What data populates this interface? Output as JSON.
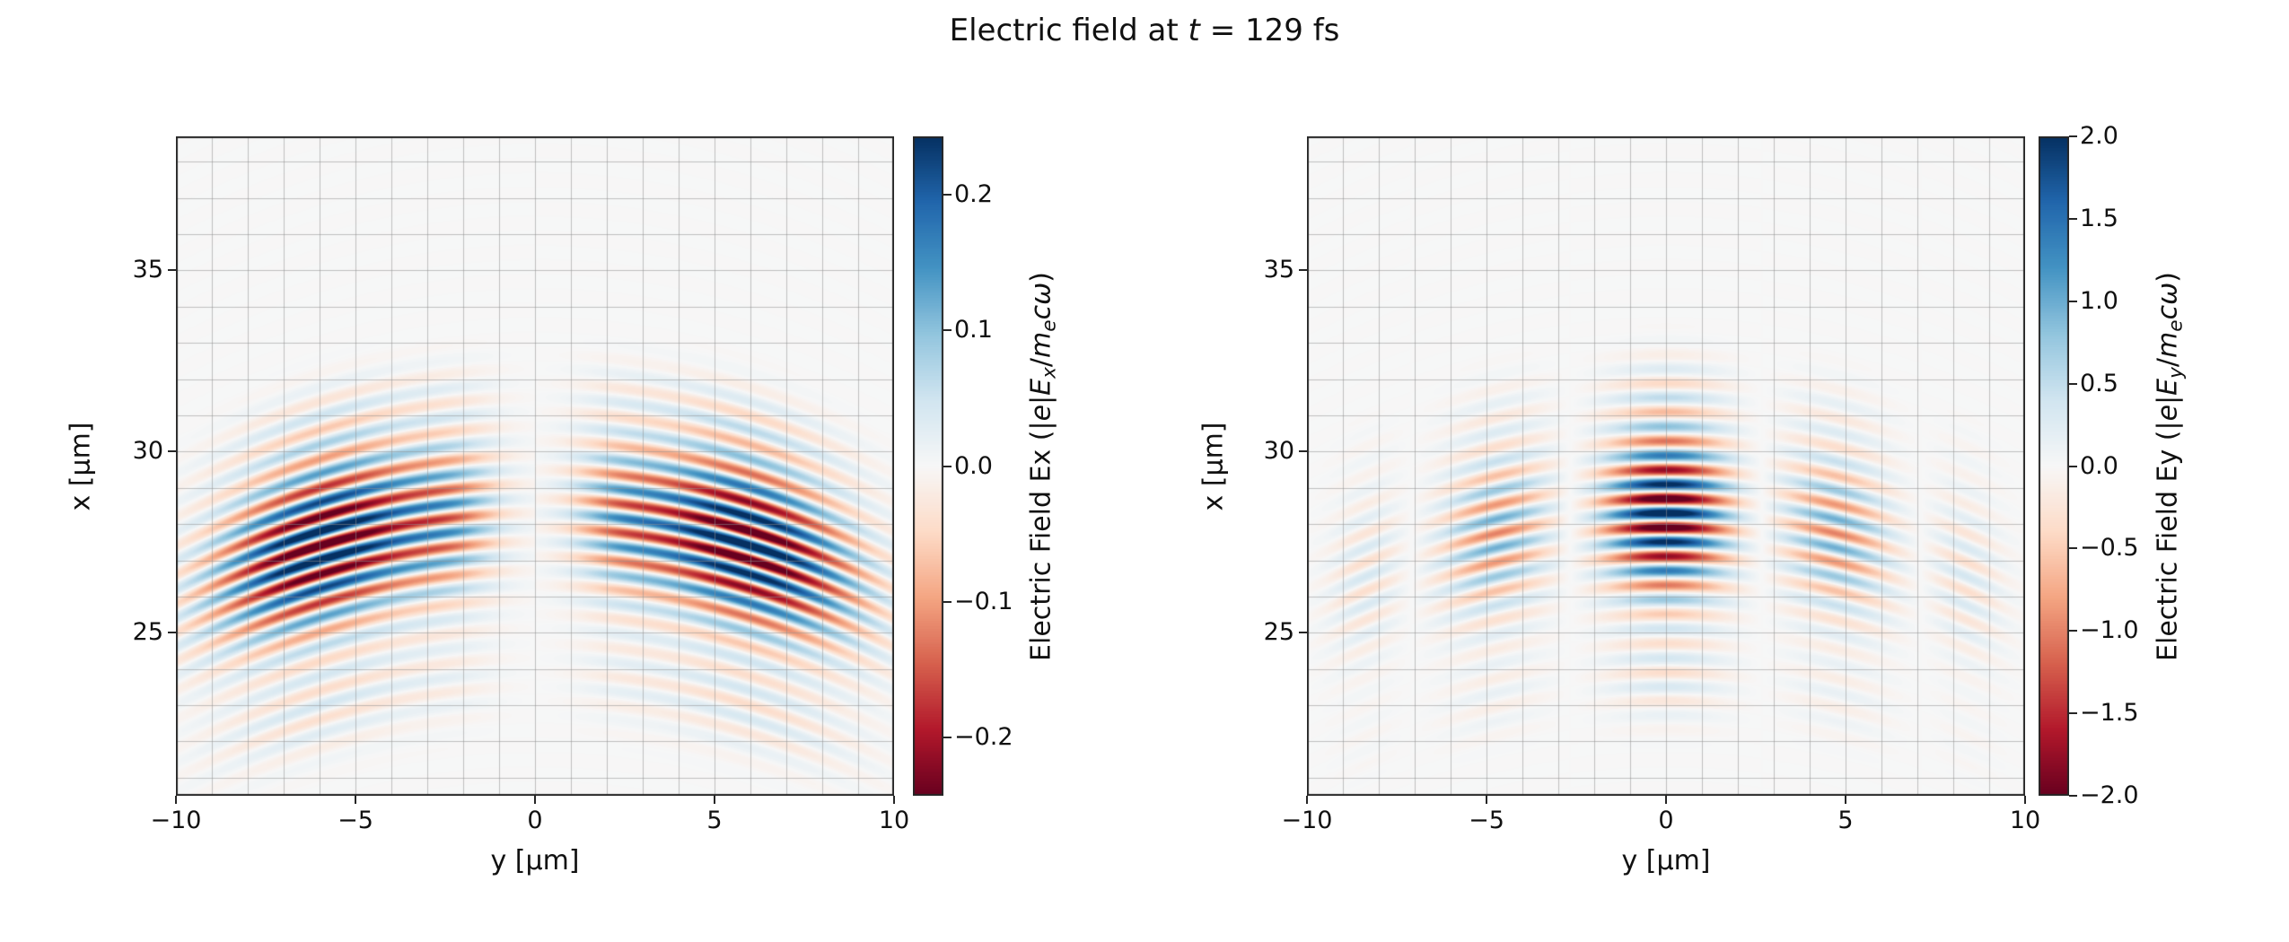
{
  "figure": {
    "title": "Electric field at t = 129 fs",
    "title_segments": [
      {
        "t": "Electric field at "
      },
      {
        "t": "t",
        "i": true
      },
      {
        "t": " = 129 fs"
      }
    ],
    "background": "#ffffff"
  },
  "chart_data": {
    "type": "heatmap",
    "title": "Electric field at t = 129 fs",
    "t_fs": 129,
    "colormap": "RdBu",
    "colormap_stops": [
      "#67001f",
      "#b2182b",
      "#d6604d",
      "#f4a582",
      "#fddbc7",
      "#f7f7f7",
      "#d1e5f0",
      "#92c5de",
      "#4393c3",
      "#2166ac",
      "#053061"
    ],
    "grid": {
      "on": true,
      "step": 1,
      "color": "rgba(145,145,145,0.55)"
    },
    "panels": [
      {
        "name": "Ex",
        "h_label": "y [μm]",
        "v_label": "x [μm]",
        "h_range": [
          -10,
          10
        ],
        "v_range": [
          20.5,
          38.7
        ],
        "h_ticks": [
          -10,
          -5,
          0,
          5,
          10
        ],
        "h_tick_labels": [
          "−10",
          "−5",
          "0",
          "5",
          "10"
        ],
        "v_ticks": [
          25,
          30,
          35
        ],
        "v_tick_labels": [
          "25",
          "30",
          "35"
        ],
        "colorbar": {
          "vmin": -0.243,
          "vmax": 0.243,
          "ticks": [
            0.2,
            0.1,
            0.0,
            -0.1,
            -0.2
          ],
          "tick_labels": [
            "0.2",
            "0.1",
            "0.0",
            "−0.1",
            "−0.2"
          ],
          "label": "Electric Field Ex (|e|Ex/mecω)",
          "label_segments": [
            {
              "t": "Electric Field Ex ("
            },
            {
              "t": "|"
            },
            {
              "t": "e",
              "i": true
            },
            {
              "t": "|"
            },
            {
              "t": "E",
              "i": true
            },
            {
              "t": "x",
              "i": true,
              "s": true
            },
            {
              "t": "/"
            },
            {
              "t": "m",
              "i": true
            },
            {
              "t": "e",
              "i": true,
              "s": true
            },
            {
              "t": "c",
              "i": true
            },
            {
              "t": "ω",
              "i": true
            },
            {
              "t": ")"
            }
          ]
        },
        "field_model": {
          "description": "Transverse field component of a focused laser pulse: curved wavefronts centered near x=28.3 um, carrier wavelength 0.8 um, odd two-lobe transverse profile peaking near y=±6 um, peak amplitude ~0.25",
          "amp": 0.3,
          "x0": 28.3,
          "R": 20,
          "lambda": 0.8,
          "phase": 0,
          "long_env": [
            {
              "a": 1.0,
              "c": 0.0,
              "w": 2.2
            },
            {
              "a": 0.13,
              "c": -4.5,
              "w": 1.2
            },
            {
              "a": 0.1,
              "c": 3.4,
              "w": 1.0
            }
          ],
          "transverse": [
            {
              "a": 1.0,
              "c": 5.9,
              "w": 3.0
            },
            {
              "a": 0.3,
              "c": 2.3,
              "w": 1.3
            }
          ],
          "odd": true
        }
      },
      {
        "name": "Ey",
        "h_label": "y [μm]",
        "v_label": "x [μm]",
        "h_range": [
          -10,
          10
        ],
        "v_range": [
          20.5,
          38.7
        ],
        "h_ticks": [
          -10,
          -5,
          0,
          5,
          10
        ],
        "h_tick_labels": [
          "−10",
          "−5",
          "0",
          "5",
          "10"
        ],
        "v_ticks": [
          25,
          30,
          35
        ],
        "v_tick_labels": [
          "25",
          "30",
          "35"
        ],
        "colorbar": {
          "vmin": -2.0,
          "vmax": 2.0,
          "ticks": [
            2.0,
            1.5,
            1.0,
            0.5,
            0.0,
            -0.5,
            -1.0,
            -1.5,
            -2.0
          ],
          "tick_labels": [
            "2.0",
            "1.5",
            "1.0",
            "0.5",
            "0.0",
            "−0.5",
            "−1.0",
            "−1.5",
            "−2.0"
          ],
          "label": "Electric Field Ey (|e|Ey/mecω)",
          "label_segments": [
            {
              "t": "Electric Field Ey ("
            },
            {
              "t": "|"
            },
            {
              "t": "e",
              "i": true
            },
            {
              "t": "|"
            },
            {
              "t": "E",
              "i": true
            },
            {
              "t": "y",
              "i": true,
              "s": true
            },
            {
              "t": "/"
            },
            {
              "t": "m",
              "i": true
            },
            {
              "t": "e",
              "i": true,
              "s": true
            },
            {
              "t": "c",
              "i": true
            },
            {
              "t": "ω",
              "i": true
            },
            {
              "t": ")"
            }
          ]
        },
        "field_model": {
          "description": "Main polarization component: strong central lobe at y=0 with phase-flipped side lobes near y=±4.7 um and faint outer rings, curved wavefronts, carrier wavelength 0.8 um, peak amplitude ~2.0",
          "amp": 2.4,
          "x0": 28.3,
          "R": 20,
          "lambda": 0.8,
          "phase": 0,
          "long_env": [
            {
              "a": 1.0,
              "c": 0.0,
              "w": 2.2
            },
            {
              "a": 0.13,
              "c": -4.5,
              "w": 1.2
            },
            {
              "a": 0.1,
              "c": 3.4,
              "w": 1.0
            }
          ],
          "transverse": [
            {
              "a": 1.0,
              "c": 0.0,
              "w": 1.7
            },
            {
              "a": -0.42,
              "c": 4.7,
              "w": 1.6
            },
            {
              "a": 0.15,
              "c": 8.3,
              "w": 1.1
            }
          ],
          "odd": false
        }
      }
    ]
  }
}
